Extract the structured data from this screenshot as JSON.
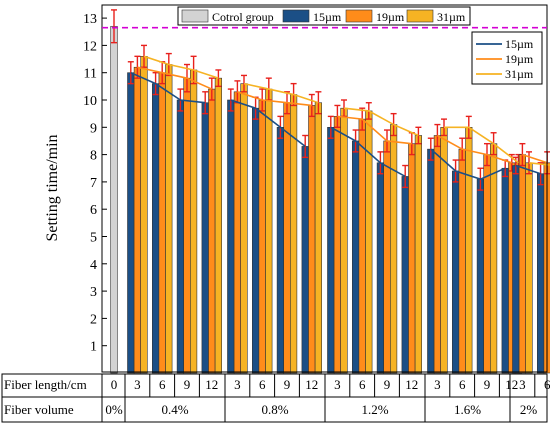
{
  "chart_data": {
    "type": "bar",
    "ylabel": "Setting time/min",
    "ylim": [
      0,
      13.5
    ],
    "y_ticks": [
      1,
      2,
      3,
      4,
      5,
      6,
      7,
      8,
      9,
      10,
      11,
      12,
      13
    ],
    "control": {
      "name": "Cotrol group",
      "x_label": "0",
      "volume_label": "0%",
      "value": 12.7,
      "error": 0.6,
      "color": "#d3d3d3"
    },
    "reference_line": {
      "value": 12.65,
      "color": "#d400d4",
      "style": "dashed"
    },
    "series": [
      {
        "name": "15µm",
        "color": "#1b4f86"
      },
      {
        "name": "19µm",
        "color": "#ff8c1a"
      },
      {
        "name": "31µm",
        "color": "#f6b323"
      }
    ],
    "line_legend": [
      {
        "name": "15µm",
        "color": "#1b4f86"
      },
      {
        "name": "19µm",
        "color": "#ff8c1a"
      },
      {
        "name": "31µm",
        "color": "#f6b323"
      }
    ],
    "groups": [
      {
        "volume": "0.4%",
        "lengths": [
          "3",
          "6",
          "9",
          "12"
        ],
        "values": [
          [
            11.0,
            11.2,
            11.6
          ],
          [
            10.6,
            11.0,
            11.3
          ],
          [
            10.0,
            10.8,
            11.1
          ],
          [
            9.9,
            10.4,
            10.8
          ]
        ],
        "errors": [
          [
            0.4,
            0.4,
            0.4
          ],
          [
            0.4,
            0.4,
            0.4
          ],
          [
            0.4,
            0.5,
            0.5
          ],
          [
            0.4,
            0.4,
            0.3
          ]
        ]
      },
      {
        "volume": "0.8%",
        "lengths": [
          "3",
          "6",
          "9",
          "12"
        ],
        "values": [
          [
            10.0,
            10.3,
            10.6
          ],
          [
            9.7,
            10.0,
            10.4
          ],
          [
            9.0,
            9.9,
            10.2
          ],
          [
            8.3,
            9.8,
            9.9
          ]
        ],
        "errors": [
          [
            0.4,
            0.4,
            0.3
          ],
          [
            0.4,
            0.4,
            0.4
          ],
          [
            0.4,
            0.4,
            0.4
          ],
          [
            0.4,
            0.4,
            0.4
          ]
        ]
      },
      {
        "volume": "1.2%",
        "lengths": [
          "3",
          "6",
          "9",
          "12"
        ],
        "values": [
          [
            9.0,
            9.4,
            9.7
          ],
          [
            8.5,
            9.3,
            9.6
          ],
          [
            7.7,
            8.5,
            9.1
          ],
          [
            7.2,
            8.4,
            8.7
          ]
        ],
        "errors": [
          [
            0.4,
            0.4,
            0.3
          ],
          [
            0.4,
            0.4,
            0.3
          ],
          [
            0.4,
            0.4,
            0.4
          ],
          [
            0.4,
            0.4,
            0.3
          ]
        ]
      },
      {
        "volume": "1.6%",
        "lengths": [
          "3",
          "6",
          "9",
          "12"
        ],
        "values": [
          [
            8.2,
            8.7,
            9.0
          ],
          [
            7.4,
            8.2,
            9.0
          ],
          [
            7.1,
            8.0,
            8.4
          ],
          [
            7.5,
            7.7,
            7.7
          ]
        ],
        "errors": [
          [
            0.4,
            0.4,
            0.3
          ],
          [
            0.4,
            0.4,
            0.4
          ],
          [
            0.4,
            0.4,
            0.4
          ],
          [
            0.3,
            0.3,
            0.3
          ]
        ]
      },
      {
        "volume": "2%",
        "lengths": [
          "3",
          "6"
        ],
        "values": [
          [
            7.6,
            8.0,
            7.7
          ],
          [
            7.3,
            7.7,
            7.6
          ]
        ],
        "errors": [
          [
            0.3,
            0.4,
            0.4
          ],
          [
            0.4,
            0.4,
            0.4
          ]
        ]
      }
    ],
    "table_labels": {
      "length_row": "Fiber length/cm",
      "volume_row": "Fiber volume"
    }
  }
}
